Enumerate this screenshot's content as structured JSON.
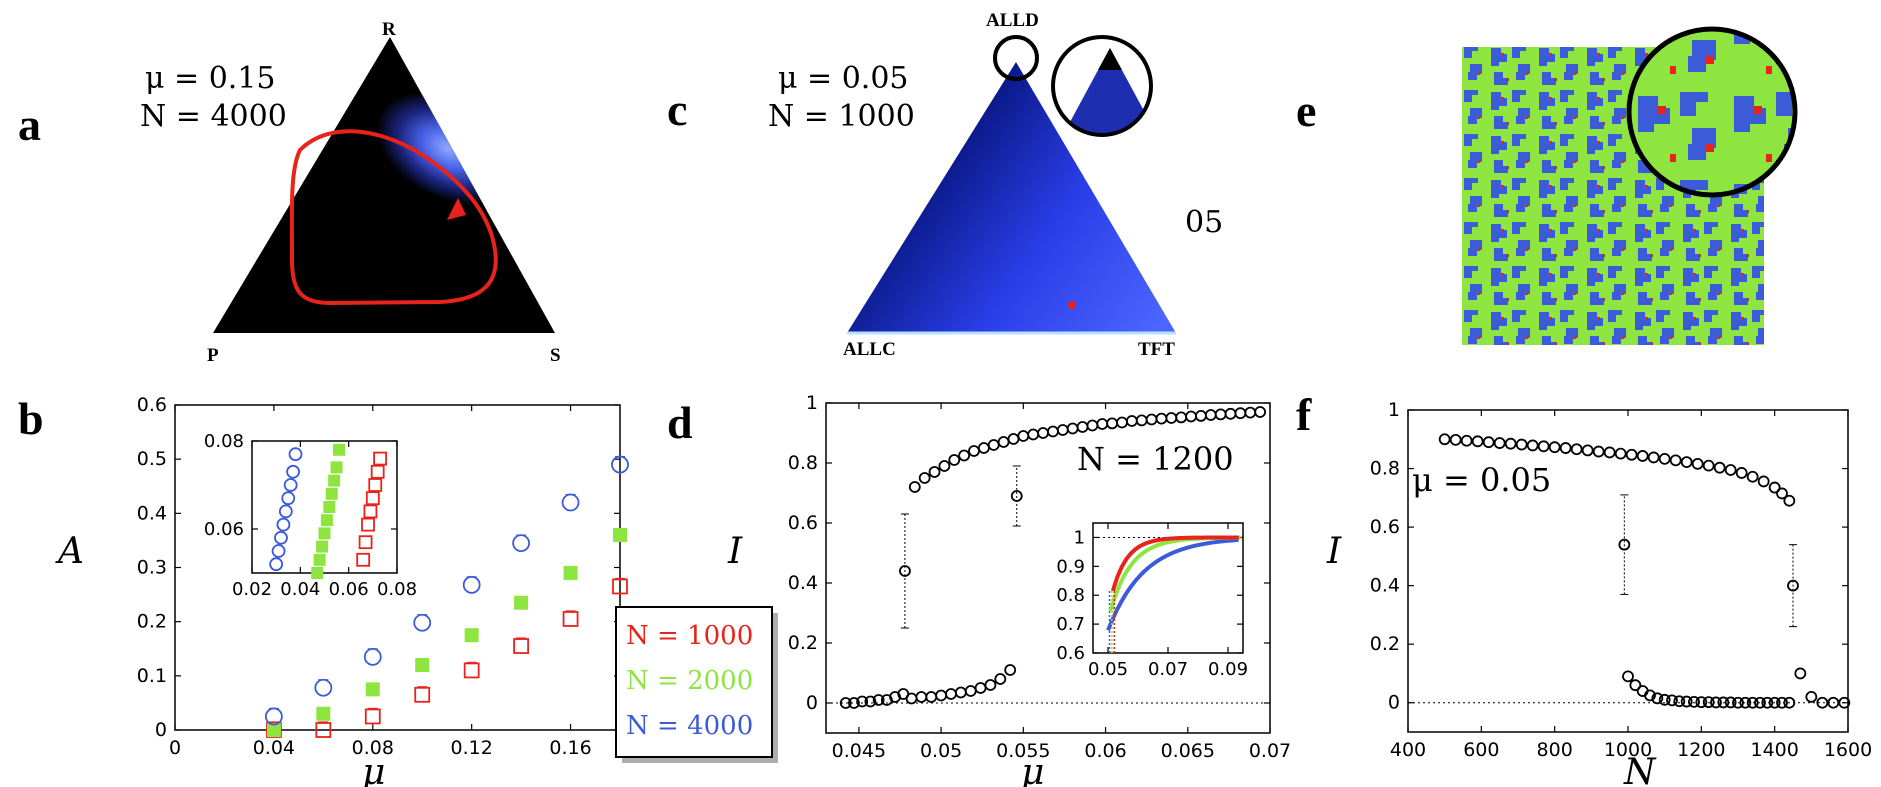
{
  "colors": {
    "red": "#e8231c",
    "green": "#8ee53f",
    "blue": "#3b5bd9",
    "black": "#000000"
  },
  "panels": {
    "a": {
      "label": "a",
      "vertices": {
        "top": "R",
        "left": "P",
        "right": "S"
      },
      "params": [
        "μ = 0.15",
        "N = 4000"
      ]
    },
    "c": {
      "label": "c",
      "vertices": {
        "top": "ALLD",
        "left": "ALLC",
        "right": "TFT"
      },
      "params": [
        "μ = 0.05",
        "N = 1000"
      ],
      "side_text": "05"
    },
    "e": {
      "label": "e"
    },
    "b": {
      "label": "b"
    },
    "d": {
      "label": "d",
      "annotation": "N = 1200"
    },
    "f": {
      "label": "f",
      "annotation": "μ = 0.05"
    }
  },
  "chart_data": [
    {
      "id": "b",
      "type": "scatter",
      "xlabel": "μ",
      "ylabel": "A",
      "xlim": [
        0,
        0.18
      ],
      "ylim": [
        0,
        0.6
      ],
      "xticks": [
        0,
        0.04,
        0.08,
        0.12,
        0.16
      ],
      "yticks": [
        0,
        0.1,
        0.2,
        0.3,
        0.4,
        0.5,
        0.6
      ],
      "legend": {
        "placement": "right",
        "entries": [
          "N = 1000",
          "N = 2000",
          "N = 4000"
        ]
      },
      "series": [
        {
          "name": "N = 1000",
          "marker": "open-square",
          "color": "#e8231c",
          "x": [
            0.04,
            0.06,
            0.08,
            0.1,
            0.12,
            0.14,
            0.16,
            0.18
          ],
          "y": [
            0.0,
            0.0,
            0.025,
            0.065,
            0.11,
            0.155,
            0.205,
            0.265
          ]
        },
        {
          "name": "N = 2000",
          "marker": "filled-square",
          "color": "#8ee53f",
          "x": [
            0.04,
            0.06,
            0.08,
            0.1,
            0.12,
            0.14,
            0.16,
            0.18
          ],
          "y": [
            0.0,
            0.03,
            0.075,
            0.12,
            0.175,
            0.235,
            0.29,
            0.36
          ]
        },
        {
          "name": "N = 4000",
          "marker": "open-circle",
          "color": "#3b5bd9",
          "x": [
            0.04,
            0.06,
            0.08,
            0.1,
            0.12,
            0.14,
            0.16,
            0.18
          ],
          "y": [
            0.025,
            0.078,
            0.135,
            0.198,
            0.268,
            0.345,
            0.42,
            0.49
          ]
        }
      ],
      "inset": {
        "xlim": [
          0.02,
          0.08
        ],
        "ylim": [
          0.05,
          0.08
        ],
        "xticks": [
          0.02,
          0.04,
          0.06,
          0.08
        ],
        "yticks": [
          0.06,
          0.08
        ],
        "series": [
          {
            "color": "#3b5bd9",
            "marker": "open-circle",
            "x": [
              0.03,
              0.031,
              0.032,
              0.033,
              0.034,
              0.035,
              0.036,
              0.037,
              0.038
            ],
            "y": [
              0.052,
              0.055,
              0.058,
              0.061,
              0.064,
              0.067,
              0.07,
              0.073,
              0.077
            ]
          },
          {
            "color": "#8ee53f",
            "marker": "filled-square",
            "x": [
              0.047,
              0.048,
              0.049,
              0.05,
              0.051,
              0.052,
              0.053,
              0.054,
              0.055,
              0.056
            ],
            "y": [
              0.05,
              0.053,
              0.056,
              0.059,
              0.062,
              0.065,
              0.068,
              0.071,
              0.074,
              0.078
            ]
          },
          {
            "color": "#e8231c",
            "marker": "open-square",
            "x": [
              0.066,
              0.067,
              0.068,
              0.069,
              0.07,
              0.071,
              0.072,
              0.073
            ],
            "y": [
              0.053,
              0.057,
              0.061,
              0.064,
              0.067,
              0.07,
              0.073,
              0.076
            ]
          }
        ]
      }
    },
    {
      "id": "d",
      "type": "scatter",
      "xlabel": "μ",
      "ylabel": "I",
      "xlim": [
        0.043,
        0.07
      ],
      "ylim": [
        -0.1,
        1.0
      ],
      "xticks": [
        0.045,
        0.05,
        0.055,
        0.06,
        0.065,
        0.07
      ],
      "yticks": [
        0,
        0.2,
        0.4,
        0.6,
        0.8,
        1
      ],
      "series": [
        {
          "name": "upper branch",
          "marker": "open-circle",
          "x": [
            0.0484,
            0.049,
            0.0496,
            0.0502,
            0.0508,
            0.0514,
            0.052,
            0.0526,
            0.0532,
            0.0538,
            0.0544,
            0.055,
            0.0556,
            0.0562,
            0.0568,
            0.0574,
            0.058,
            0.0586,
            0.0592,
            0.0598,
            0.0604,
            0.061,
            0.0616,
            0.0622,
            0.0628,
            0.0634,
            0.064,
            0.0646,
            0.0652,
            0.0658,
            0.0664,
            0.067,
            0.0676,
            0.0682,
            0.0688,
            0.0694
          ],
          "y": [
            0.72,
            0.75,
            0.77,
            0.79,
            0.81,
            0.825,
            0.84,
            0.85,
            0.86,
            0.87,
            0.88,
            0.89,
            0.895,
            0.9,
            0.905,
            0.91,
            0.915,
            0.92,
            0.925,
            0.93,
            0.932,
            0.935,
            0.94,
            0.942,
            0.945,
            0.948,
            0.95,
            0.952,
            0.955,
            0.957,
            0.96,
            0.962,
            0.964,
            0.966,
            0.968,
            0.97
          ]
        },
        {
          "name": "lower branch",
          "marker": "open-circle",
          "x": [
            0.0442,
            0.0447,
            0.0452,
            0.0457,
            0.0462,
            0.0467,
            0.0472,
            0.0477,
            0.0482,
            0.0488,
            0.0494,
            0.05,
            0.0506,
            0.0512,
            0.0518,
            0.0524,
            0.053,
            0.0536,
            0.0542
          ],
          "y": [
            0.0,
            0.0,
            0.005,
            0.005,
            0.01,
            0.01,
            0.02,
            0.03,
            0.015,
            0.02,
            0.02,
            0.025,
            0.03,
            0.035,
            0.04,
            0.05,
            0.06,
            0.08,
            0.11
          ]
        },
        {
          "name": "transition",
          "marker": "open-circle",
          "x": [
            0.0478,
            0.0546
          ],
          "y": [
            0.44,
            0.69
          ],
          "err": [
            0.19,
            0.1
          ]
        }
      ],
      "inset": {
        "xlim": [
          0.045,
          0.095
        ],
        "ylim": [
          0.6,
          1.05
        ],
        "xticks": [
          0.05,
          0.07,
          0.09
        ],
        "yticks": [
          0.6,
          0.7,
          0.8,
          0.9,
          1
        ]
      }
    },
    {
      "id": "f",
      "type": "scatter",
      "xlabel": "N",
      "ylabel": "I",
      "xlim": [
        400,
        1600
      ],
      "ylim": [
        -0.1,
        1.0
      ],
      "xticks": [
        400,
        600,
        800,
        1000,
        1200,
        1400,
        1600
      ],
      "yticks": [
        0,
        0.2,
        0.4,
        0.6,
        0.8,
        1
      ],
      "series": [
        {
          "name": "upper branch",
          "marker": "open-circle",
          "x": [
            500,
            530,
            560,
            590,
            620,
            650,
            680,
            710,
            740,
            770,
            800,
            830,
            860,
            890,
            920,
            950,
            980,
            1010,
            1040,
            1070,
            1100,
            1130,
            1160,
            1190,
            1220,
            1250,
            1280,
            1310,
            1340,
            1370,
            1400,
            1420,
            1440
          ],
          "y": [
            0.9,
            0.898,
            0.895,
            0.893,
            0.89,
            0.887,
            0.885,
            0.882,
            0.879,
            0.876,
            0.873,
            0.87,
            0.866,
            0.862,
            0.858,
            0.855,
            0.851,
            0.847,
            0.843,
            0.838,
            0.833,
            0.828,
            0.822,
            0.816,
            0.81,
            0.803,
            0.795,
            0.785,
            0.772,
            0.756,
            0.735,
            0.715,
            0.69
          ]
        },
        {
          "name": "lower branch",
          "marker": "open-circle",
          "x": [
            1000,
            1020,
            1040,
            1060,
            1080,
            1100,
            1120,
            1140,
            1160,
            1180,
            1200,
            1220,
            1240,
            1260,
            1280,
            1300,
            1320,
            1340,
            1360,
            1380,
            1400,
            1420,
            1440,
            1470,
            1500,
            1530,
            1560,
            1590
          ],
          "y": [
            0.09,
            0.06,
            0.04,
            0.025,
            0.015,
            0.01,
            0.008,
            0.005,
            0.004,
            0.003,
            0.002,
            0.002,
            0.001,
            0.001,
            0.001,
            0.0,
            0.0,
            0.0,
            0.0,
            0.0,
            0.0,
            0.0,
            0.0,
            0.1,
            0.02,
            0.0,
            0.0,
            0.0
          ]
        },
        {
          "name": "transition",
          "marker": "open-circle",
          "x": [
            990,
            1450
          ],
          "y": [
            0.54,
            0.4
          ],
          "err": [
            0.17,
            0.14
          ]
        }
      ]
    }
  ]
}
